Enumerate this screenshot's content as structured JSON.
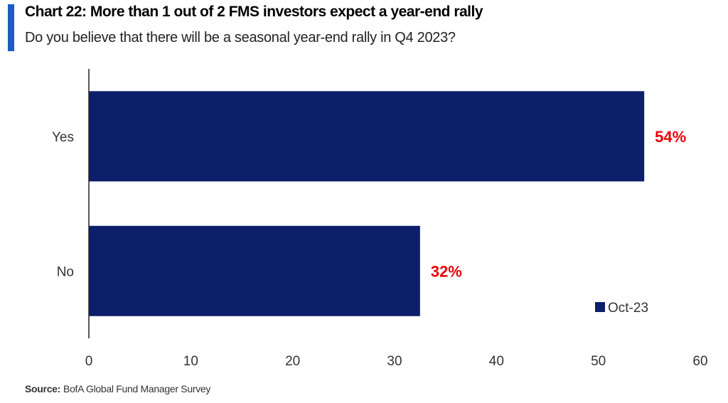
{
  "header": {
    "title": "Chart 22: More than  1 out of 2 FMS investors expect a year-end rally",
    "subtitle": "Do you believe that there will be a seasonal year-end rally in Q4 2023?"
  },
  "footer": {
    "source_label": "Source:",
    "source_text": "BofA Global Fund Manager Survey"
  },
  "colors": {
    "accent": "#1f5bc6",
    "bar": "#0d1f6b",
    "data_label": "#e8000b",
    "axis": "#222222"
  },
  "chart_data": {
    "type": "bar",
    "orientation": "horizontal",
    "categories": [
      "Yes",
      "No"
    ],
    "series": [
      {
        "name": "Oct-23",
        "values": [
          54.5,
          32.5
        ],
        "labels": [
          "54%",
          "32%"
        ]
      }
    ],
    "title": "Chart 22: More than  1 out of 2 FMS investors expect a year-end rally",
    "subtitle": "Do you believe that there will be a seasonal year-end rally in Q4 2023?",
    "xlim": [
      0,
      60
    ],
    "xticks": [
      0,
      10,
      20,
      30,
      40,
      50,
      60
    ],
    "xlabel": "",
    "ylabel": "",
    "grid": false,
    "legend": {
      "position": "bottom-right",
      "entries": [
        "Oct-23"
      ]
    }
  }
}
